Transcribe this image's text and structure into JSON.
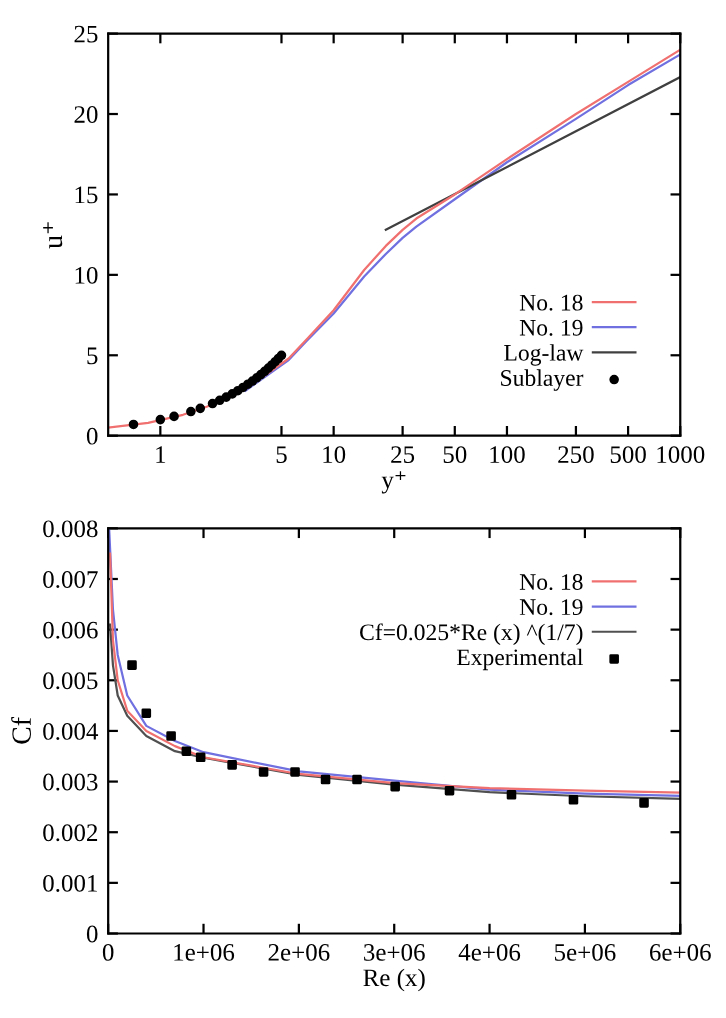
{
  "chart_data": [
    {
      "type": "line",
      "xlabel": "y⁺",
      "ylabel": "u⁺",
      "log": "x",
      "xlim": [
        0.5,
        1000
      ],
      "ylim": [
        0,
        25
      ],
      "xticks": [
        1,
        5,
        10,
        25,
        50,
        100,
        250,
        500,
        1000
      ],
      "yticks": [
        0,
        5,
        10,
        15,
        20,
        25
      ],
      "grid": false,
      "legend": "bottom right",
      "series": [
        {
          "name": "No. 18",
          "color": "#f07070",
          "type": "line",
          "x": [
            0.5,
            0.85,
            1.35,
            1.85,
            2.5,
            3.1,
            5.5,
            7,
            10,
            15,
            20,
            25,
            30,
            50,
            100,
            250,
            500,
            1000
          ],
          "values": [
            0.5,
            0.8,
            1.3,
            1.8,
            2.4,
            2.9,
            4.8,
            6,
            7.8,
            10.3,
            11.8,
            12.8,
            13.5,
            15,
            17.2,
            20,
            22,
            24
          ]
        },
        {
          "name": "No. 19",
          "color": "#7070e0",
          "type": "line",
          "x": [
            3.1,
            5.5,
            7,
            10,
            15,
            20,
            25,
            30,
            50,
            100,
            250,
            500,
            1000
          ],
          "values": [
            2.8,
            4.7,
            5.9,
            7.6,
            9.9,
            11.3,
            12.3,
            13,
            14.7,
            17,
            19.7,
            21.8,
            23.7
          ]
        },
        {
          "name": "Log-law",
          "color": "#404040",
          "type": "line",
          "x": [
            20,
            1000
          ],
          "values": [
            12.8,
            22.3
          ]
        },
        {
          "name": "Sublayer",
          "color": "#000000",
          "type": "scatter",
          "marker": "circle",
          "x": [
            0.7,
            1,
            1.2,
            1.5,
            1.7,
            2,
            2.2,
            2.4,
            2.6,
            2.8,
            3,
            3.2,
            3.4,
            3.6,
            3.8,
            4,
            4.2,
            4.4,
            4.6,
            4.8,
            5
          ],
          "values": [
            0.7,
            1,
            1.2,
            1.5,
            1.7,
            2,
            2.2,
            2.4,
            2.6,
            2.8,
            3,
            3.2,
            3.4,
            3.6,
            3.8,
            4,
            4.2,
            4.4,
            4.6,
            4.8,
            5
          ]
        }
      ]
    },
    {
      "type": "line",
      "xlabel": "Re (x)",
      "ylabel": "Cf",
      "xlim": [
        0,
        6000000
      ],
      "ylim": [
        0,
        0.008
      ],
      "xticks": [
        {
          "value": 0,
          "label": "0"
        },
        {
          "value": 1000000,
          "label": "1e+06"
        },
        {
          "value": 2000000,
          "label": "2e+06"
        },
        {
          "value": 3000000,
          "label": "3e+06"
        },
        {
          "value": 4000000,
          "label": "4e+06"
        },
        {
          "value": 5000000,
          "label": "5e+06"
        },
        {
          "value": 6000000,
          "label": "6e+06"
        }
      ],
      "yticks": [
        0,
        0.001,
        0.002,
        0.003,
        0.004,
        0.005,
        0.006,
        0.007,
        0.008
      ],
      "grid": false,
      "legend": "top right",
      "series": [
        {
          "name": "No. 18",
          "color": "#f07070",
          "type": "line",
          "x": [
            20000,
            50000,
            100000,
            200000,
            400000,
            700000,
            1000000,
            2000000,
            3000000,
            4000000,
            5000000,
            6000000
          ],
          "values": [
            0.0075,
            0.0058,
            0.005,
            0.0044,
            0.004,
            0.0037,
            0.00348,
            0.00315,
            0.00297,
            0.00287,
            0.00282,
            0.00278
          ]
        },
        {
          "name": "No. 19",
          "color": "#7070e0",
          "type": "line",
          "x": [
            10000,
            50000,
            100000,
            200000,
            400000,
            700000,
            1000000,
            2000000,
            3000000,
            4000000,
            5000000,
            6000000
          ],
          "values": [
            0.008,
            0.0064,
            0.0055,
            0.0047,
            0.0041,
            0.0038,
            0.00358,
            0.0032,
            0.00302,
            0.00284,
            0.00276,
            0.00272
          ]
        },
        {
          "name": "Cf=0.025*Re (x) ^(1/7)",
          "color": "#505050",
          "type": "line",
          "x": [
            20000,
            50000,
            100000,
            200000,
            400000,
            700000,
            1000000,
            2000000,
            3000000,
            4000000,
            5000000,
            6000000
          ],
          "values": [
            0.0061,
            0.0053,
            0.0047,
            0.0043,
            0.0039,
            0.0036,
            0.00347,
            0.00313,
            0.00294,
            0.00279,
            0.00271,
            0.00266
          ]
        },
        {
          "name": "Experimental",
          "color": "#000000",
          "type": "scatter",
          "marker": "square",
          "x": [
            250000,
            400000,
            660000,
            820000,
            970000,
            1300000,
            1630000,
            1960000,
            2280000,
            2610000,
            3010000,
            3580000,
            4230000,
            4880000,
            5620000
          ],
          "values": [
            0.0053,
            0.00435,
            0.0039,
            0.0036,
            0.00348,
            0.00333,
            0.00319,
            0.00319,
            0.00304,
            0.00304,
            0.0029,
            0.00282,
            0.00274,
            0.00264,
            0.00258
          ]
        }
      ]
    }
  ]
}
